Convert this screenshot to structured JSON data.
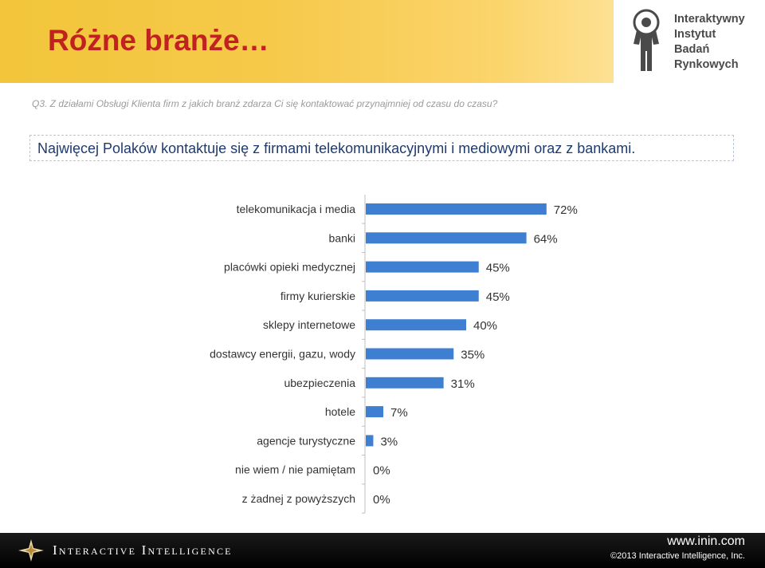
{
  "header": {
    "title": "Różne branże…",
    "logo_lines": [
      "Interaktywny",
      "Instytut",
      "Badań",
      "Rynkowych"
    ]
  },
  "question": "Q3. Z działami Obsługi Klienta firm z jakich branż zdarza Ci się kontaktować przynajmniej od czasu do czasu?",
  "headline": "Najwięcej Polaków kontaktuje się z firmami telekomunikacyjnymi i mediowymi oraz z bankami.",
  "chart_data": {
    "type": "bar",
    "orientation": "horizontal",
    "categories": [
      "telekomunikacja i media",
      "banki",
      "placówki opieki medycznej",
      "firmy kurierskie",
      "sklepy internetowe",
      "dostawcy energii, gazu, wody",
      "ubezpieczenia",
      "hotele",
      "agencje turystyczne",
      "nie wiem / nie pamiętam",
      "z żadnej z powyższych"
    ],
    "values": [
      72,
      64,
      45,
      45,
      40,
      35,
      31,
      7,
      3,
      0,
      0
    ],
    "value_labels": [
      "72%",
      "64%",
      "45%",
      "45%",
      "40%",
      "35%",
      "31%",
      "7%",
      "3%",
      "0%",
      "0%"
    ],
    "unit": "%",
    "xlim": [
      0,
      100
    ],
    "grid": false,
    "bar_color": "#3f7fd2"
  },
  "footer": {
    "brand": "Interactive Intelligence",
    "url": "www.inin.com",
    "copyright": "©2013 Interactive Intelligence, Inc."
  },
  "colors": {
    "title": "#c0231f",
    "headline_text": "#1f3a6e",
    "header_gold": "#f2c53a",
    "footer_bg": "#000000"
  },
  "icons": {
    "logo": "iibr-figure-logo",
    "footer": "compass-star-icon"
  }
}
